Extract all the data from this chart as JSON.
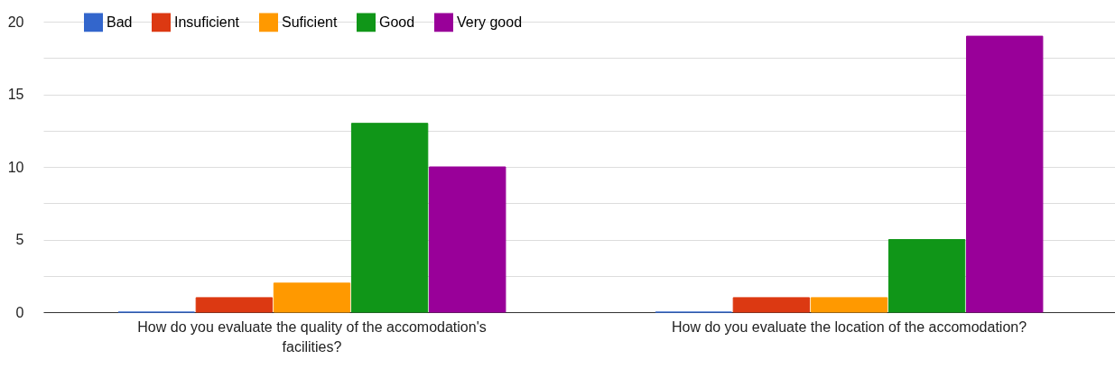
{
  "chart_data": {
    "type": "bar",
    "categories": [
      "How do you evaluate the quality of the accomodation's facilities?",
      "How do you evaluate the location of the accomodation?"
    ],
    "series": [
      {
        "name": "Bad",
        "color": "#3366cc",
        "values": [
          0,
          0
        ]
      },
      {
        "name": "Insuficient",
        "color": "#dc3912",
        "values": [
          1,
          1
        ]
      },
      {
        "name": "Suficient",
        "color": "#ff9900",
        "values": [
          2,
          1
        ]
      },
      {
        "name": "Good",
        "color": "#109618",
        "values": [
          13,
          5
        ]
      },
      {
        "name": "Very good",
        "color": "#990099",
        "values": [
          10,
          19
        ]
      }
    ],
    "ylim": [
      0,
      20
    ],
    "yticks": [
      0,
      {
        "value": 2.5,
        "label": null
      },
      5,
      {
        "value": 7.5,
        "label": null
      },
      10,
      {
        "value": 12.5,
        "label": null
      },
      15,
      {
        "value": 17.5,
        "label": null
      },
      20
    ],
    "grid": true,
    "legend": "top left"
  }
}
